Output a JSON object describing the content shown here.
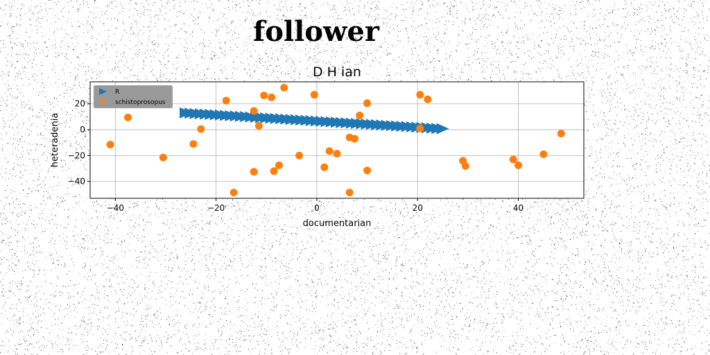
{
  "page": {
    "title": "follower"
  },
  "chart_data": {
    "type": "scatter",
    "title": "D H ian",
    "xlabel": "documentarian",
    "ylabel": "heteradenia",
    "xlim": [
      -45,
      53
    ],
    "ylim": [
      -53,
      37
    ],
    "xticks": [
      -40,
      -20,
      0,
      20,
      40
    ],
    "yticks": [
      -40,
      -20,
      0,
      20
    ],
    "grid": true,
    "legend_position": "top-left",
    "series": [
      {
        "name": "R",
        "marker": "triangle-right",
        "color": "#1f77b4",
        "x": [
          -26.0,
          -25.0,
          -24.0,
          -23.0,
          -22.0,
          -21.0,
          -20.0,
          -19.0,
          -18.0,
          -17.0,
          -16.0,
          -15.0,
          -14.0,
          -13.0,
          -12.0,
          -11.0,
          -10.0,
          -9.0,
          -8.0,
          -7.0,
          -6.0,
          -5.0,
          -4.0,
          -3.0,
          -2.0,
          -1.0,
          0.0,
          1.0,
          2.0,
          3.0,
          4.0,
          5.0,
          6.0,
          7.0,
          8.0,
          9.0,
          10.0,
          11.0,
          12.0,
          13.0,
          14.0,
          15.0,
          16.0,
          17.0,
          18.0,
          19.0,
          20.0,
          21.0,
          22.0,
          23.0,
          24.0,
          25.0
        ],
        "y": [
          13.0,
          12.76,
          12.52,
          12.28,
          12.04,
          11.8,
          11.56,
          11.32,
          11.08,
          10.84,
          10.6,
          10.36,
          10.12,
          9.88,
          9.64,
          9.4,
          9.16,
          8.92,
          8.68,
          8.44,
          8.2,
          7.96,
          7.72,
          7.48,
          7.24,
          7.0,
          6.76,
          6.52,
          6.28,
          6.04,
          5.8,
          5.56,
          5.32,
          5.08,
          4.84,
          4.6,
          4.36,
          4.12,
          3.88,
          3.64,
          3.4,
          3.16,
          2.92,
          2.68,
          2.44,
          2.2,
          1.96,
          1.72,
          1.48,
          1.24,
          1.0,
          0.76
        ]
      },
      {
        "name": "schistoprosopus",
        "marker": "circle",
        "color": "#ff7f0e",
        "points": [
          [
            -41.0,
            -11.5
          ],
          [
            -37.5,
            9.5
          ],
          [
            -30.5,
            -21.5
          ],
          [
            -24.5,
            -11.0
          ],
          [
            -23.0,
            0.5
          ],
          [
            -18.0,
            22.5
          ],
          [
            -16.5,
            -48.5
          ],
          [
            -12.5,
            14.5
          ],
          [
            -12.5,
            -32.5
          ],
          [
            -11.5,
            3.0
          ],
          [
            -10.5,
            26.5
          ],
          [
            -9.0,
            25.0
          ],
          [
            -8.5,
            -32.0
          ],
          [
            -7.5,
            -27.5
          ],
          [
            -6.5,
            32.5
          ],
          [
            -3.5,
            -20.0
          ],
          [
            -0.5,
            27.0
          ],
          [
            1.5,
            -29.0
          ],
          [
            2.5,
            -16.5
          ],
          [
            4.0,
            -18.5
          ],
          [
            6.5,
            -6.0
          ],
          [
            6.5,
            -48.5
          ],
          [
            7.5,
            -7.0
          ],
          [
            8.5,
            11.0
          ],
          [
            10.0,
            20.5
          ],
          [
            10.0,
            -31.5
          ],
          [
            20.5,
            27.0
          ],
          [
            20.5,
            1.0
          ],
          [
            22.0,
            23.5
          ],
          [
            29.0,
            -24.0
          ],
          [
            29.5,
            -28.0
          ],
          [
            39.0,
            -23.0
          ],
          [
            40.0,
            -27.5
          ],
          [
            45.0,
            -19.0
          ],
          [
            48.5,
            -3.0
          ]
        ]
      }
    ]
  }
}
